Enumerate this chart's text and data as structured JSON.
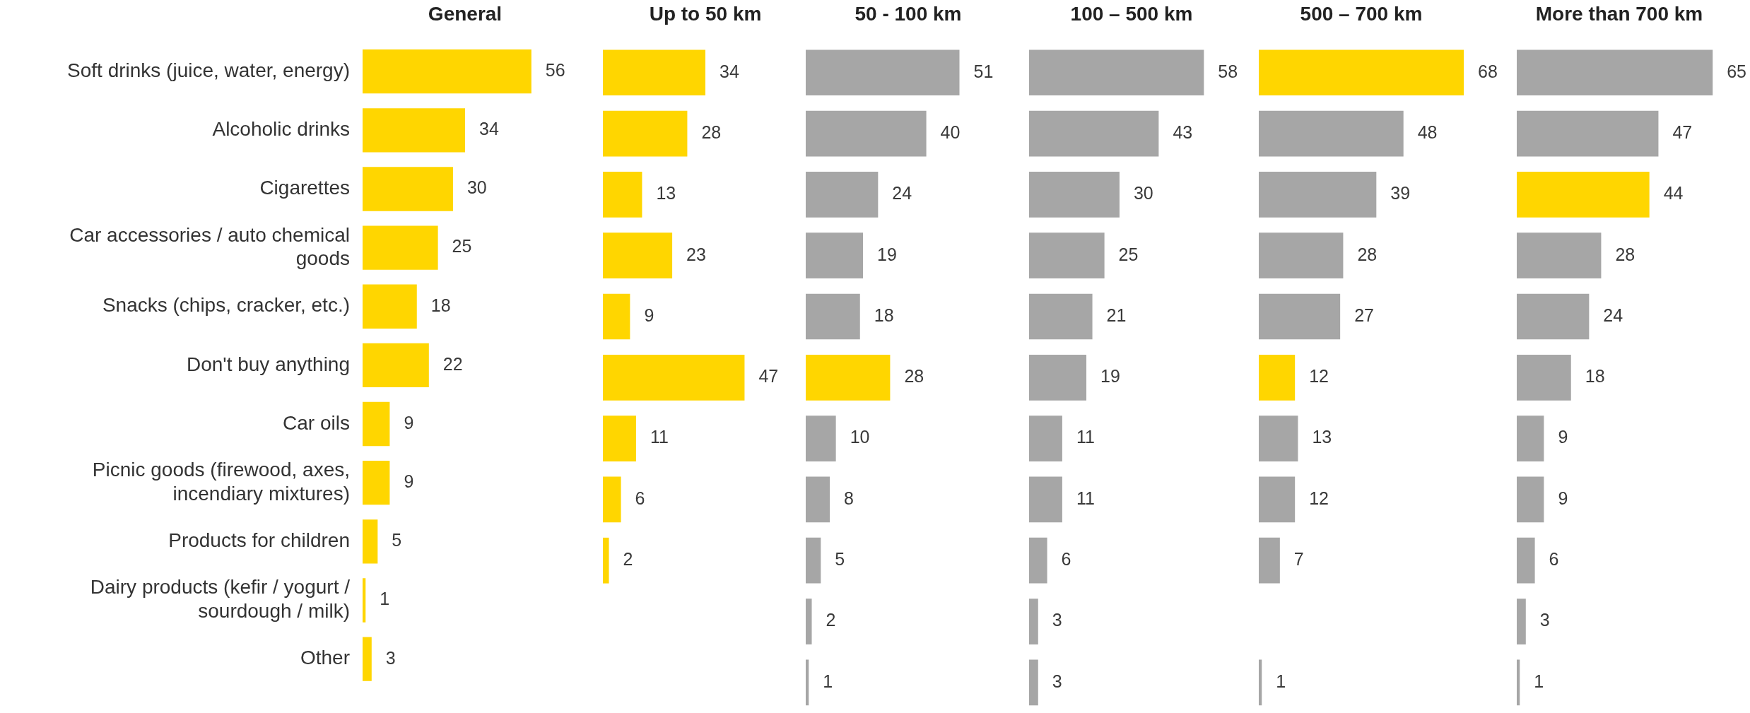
{
  "chart_data": [
    {
      "type": "bar",
      "orientation": "horizontal",
      "title": "General",
      "categories": [
        "Soft drinks (juice, water, energy)",
        "Alcoholic drinks",
        "Cigarettes",
        "Car accessories / auto chemical goods",
        "Snacks (chips, cracker, etc.)",
        "Don't buy anything",
        "Car oils",
        "Picnic goods (firewood, axes, incendiary mixtures)",
        "Products for children",
        "Dairy products (kefir / yogurt / sourdough / milk)",
        "Other"
      ],
      "values": [
        56,
        34,
        30,
        25,
        18,
        22,
        9,
        9,
        5,
        1,
        3
      ],
      "colors": [
        "#ffd600",
        "#ffd600",
        "#ffd600",
        "#ffd600",
        "#ffd600",
        "#ffd600",
        "#ffd600",
        "#ffd600",
        "#ffd600",
        "#ffd600",
        "#ffd600"
      ],
      "data_labels": true,
      "tick_labels": "y"
    },
    {
      "type": "bar",
      "orientation": "horizontal",
      "title": "Up to 50 km",
      "categories": [
        null,
        null,
        null,
        null,
        null,
        null,
        null,
        null,
        null,
        null,
        null
      ],
      "values": [
        34,
        28,
        13,
        23,
        9,
        47,
        11,
        6,
        2,
        null,
        null
      ],
      "colors": [
        "#ffd600",
        "#ffd600",
        "#ffd600",
        "#ffd600",
        "#ffd600",
        "#ffd600",
        "#ffd600",
        "#ffd600",
        "#ffd600",
        "#ffd600",
        "#ffd600"
      ],
      "data_labels": true,
      "tick_labels": false
    },
    {
      "type": "bar",
      "orientation": "horizontal",
      "title": "50 - 100 km",
      "categories": [
        null,
        null,
        null,
        null,
        null,
        null,
        null,
        null,
        null,
        null,
        null
      ],
      "values": [
        51,
        40,
        24,
        19,
        18,
        28,
        10,
        8,
        5,
        2,
        1
      ],
      "colors": [
        "#a6a6a6",
        "#a6a6a6",
        "#a6a6a6",
        "#a6a6a6",
        "#a6a6a6",
        "#ffd600",
        "#a6a6a6",
        "#a6a6a6",
        "#a6a6a6",
        "#a6a6a6",
        "#a6a6a6"
      ],
      "data_labels": true,
      "tick_labels": false
    },
    {
      "type": "bar",
      "orientation": "horizontal",
      "title": "100 – 500 km",
      "categories": [
        null,
        null,
        null,
        null,
        null,
        null,
        null,
        null,
        null,
        null,
        null
      ],
      "values": [
        58,
        43,
        30,
        25,
        21,
        19,
        11,
        11,
        6,
        3,
        3
      ],
      "colors": [
        "#a6a6a6",
        "#a6a6a6",
        "#a6a6a6",
        "#a6a6a6",
        "#a6a6a6",
        "#a6a6a6",
        "#a6a6a6",
        "#a6a6a6",
        "#a6a6a6",
        "#a6a6a6",
        "#a6a6a6"
      ],
      "data_labels": true,
      "tick_labels": false
    },
    {
      "type": "bar",
      "orientation": "horizontal",
      "title": "500 – 700 km",
      "categories": [
        null,
        null,
        null,
        null,
        null,
        null,
        null,
        null,
        null,
        null,
        null
      ],
      "values": [
        68,
        48,
        39,
        28,
        27,
        12,
        13,
        12,
        7,
        null,
        1
      ],
      "colors": [
        "#ffd600",
        "#a6a6a6",
        "#a6a6a6",
        "#a6a6a6",
        "#a6a6a6",
        "#ffd600",
        "#a6a6a6",
        "#a6a6a6",
        "#a6a6a6",
        "#a6a6a6",
        "#a6a6a6"
      ],
      "data_labels": true,
      "tick_labels": false
    },
    {
      "type": "bar",
      "orientation": "horizontal",
      "title": "More than 700 km",
      "categories": [
        null,
        null,
        null,
        null,
        null,
        null,
        null,
        null,
        null,
        null,
        null
      ],
      "values": [
        65,
        47,
        44,
        28,
        24,
        18,
        9,
        9,
        6,
        3,
        1
      ],
      "colors": [
        "#a6a6a6",
        "#a6a6a6",
        "#ffd600",
        "#a6a6a6",
        "#a6a6a6",
        "#a6a6a6",
        "#a6a6a6",
        "#a6a6a6",
        "#a6a6a6",
        "#a6a6a6",
        "#a6a6a6"
      ],
      "data_labels": true,
      "tick_labels": false
    }
  ]
}
